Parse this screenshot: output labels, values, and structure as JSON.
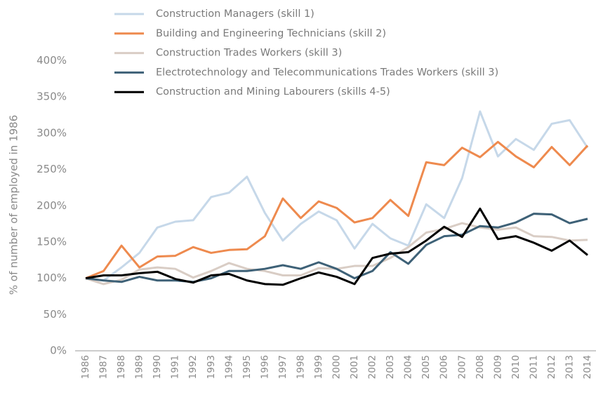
{
  "chart_data": {
    "type": "line",
    "y_label": "% of number of employed in 1986",
    "categories": [
      "1986",
      "1987",
      "1988",
      "1989",
      "1990",
      "1991",
      "1992",
      "1993",
      "1994",
      "1995",
      "1996",
      "1997",
      "1998",
      "1999",
      "2000",
      "2001",
      "2002",
      "2003",
      "2004",
      "2005",
      "2006",
      "2007",
      "2008",
      "2009",
      "2010",
      "2011",
      "2012",
      "2013",
      "2014"
    ],
    "series": [
      {
        "name": "Construction Managers (skill 1)",
        "color": "#c6d8e9",
        "values": [
          100,
          97,
          115,
          135,
          170,
          178,
          180,
          212,
          218,
          240,
          190,
          152,
          175,
          192,
          180,
          141,
          175,
          155,
          145,
          202,
          183,
          238,
          330,
          268,
          292,
          277,
          313,
          318,
          280
        ]
      },
      {
        "name": "Building and Engineering Technicians (skill 2)",
        "color": "#ee8a4e",
        "values": [
          100,
          110,
          145,
          115,
          130,
          131,
          143,
          135,
          139,
          140,
          158,
          210,
          183,
          206,
          197,
          177,
          183,
          208,
          186,
          260,
          256,
          280,
          267,
          288,
          268,
          253,
          281,
          256,
          283
        ]
      },
      {
        "name": "Construction Trades Workers (skill 3)",
        "color": "#d9cdc5",
        "values": [
          100,
          92,
          98,
          112,
          115,
          113,
          101,
          110,
          121,
          113,
          110,
          104,
          104,
          114,
          113,
          117,
          117,
          128,
          143,
          163,
          168,
          176,
          170,
          167,
          170,
          158,
          157,
          152,
          153
        ]
      },
      {
        "name": "Electrotechnology and Telecommunications Trades Workers (skill 3)",
        "color": "#3e6177",
        "values": [
          100,
          97,
          95,
          102,
          97,
          97,
          95,
          100,
          110,
          110,
          113,
          118,
          113,
          122,
          113,
          100,
          110,
          136,
          120,
          146,
          158,
          160,
          172,
          170,
          177,
          189,
          188,
          176,
          182
        ]
      },
      {
        "name": "Construction and Mining Labourers (skills 4-5)",
        "color": "#000000",
        "values": [
          100,
          104,
          104,
          107,
          109,
          99,
          94,
          104,
          106,
          97,
          92,
          91,
          100,
          108,
          102,
          92,
          128,
          134,
          136,
          152,
          171,
          157,
          196,
          154,
          158,
          149,
          138,
          152,
          132
        ]
      }
    ],
    "ylim": [
      0,
      400
    ],
    "yticks": [
      {
        "value": 0,
        "label": "0%"
      },
      {
        "value": 50,
        "label": "50%"
      },
      {
        "value": 100,
        "label": "100%"
      },
      {
        "value": 150,
        "label": "150%"
      },
      {
        "value": 200,
        "label": "200%"
      },
      {
        "value": 250,
        "label": "250%"
      },
      {
        "value": 300,
        "label": "300%"
      },
      {
        "value": 350,
        "label": "350%"
      },
      {
        "value": 400,
        "label": "400%"
      }
    ]
  }
}
